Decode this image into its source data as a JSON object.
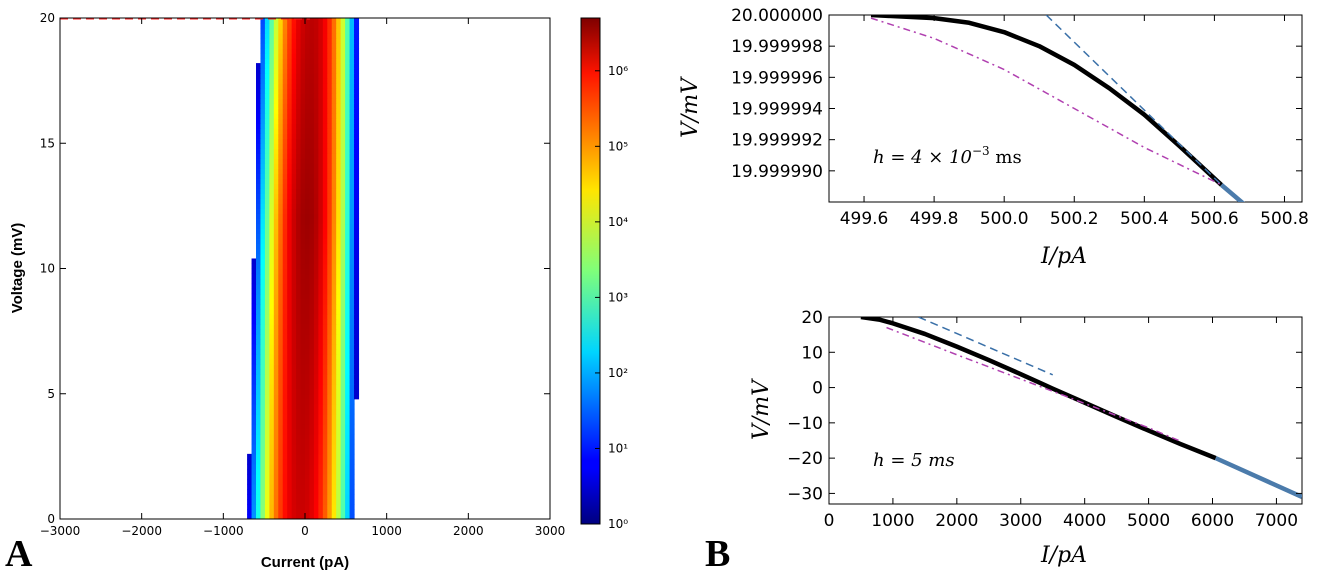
{
  "panel_labels": {
    "a": "A",
    "b": "B"
  },
  "chart_data": [
    {
      "id": "A",
      "type": "heatmap",
      "xlabel": "Current (pA)",
      "ylabel": "Voltage (mV)",
      "xlim": [
        -3000,
        3000
      ],
      "ylim": [
        0,
        20
      ],
      "xticks": [
        -3000,
        -2000,
        -1000,
        0,
        1000,
        2000,
        3000
      ],
      "xtick_labels": [
        "−3000",
        "−2000",
        "−1000",
        "0",
        "1000",
        "2000",
        "3000"
      ],
      "yticks": [
        0,
        5,
        10,
        15,
        20
      ],
      "ytick_labels": [
        "0",
        "5",
        "10",
        "15",
        "20"
      ],
      "colorbar": {
        "scale": "log",
        "colormap": "jet",
        "range": [
          1,
          5000000
        ],
        "ticks": [
          1,
          10,
          100,
          1000,
          10000,
          100000,
          1000000
        ],
        "tick_labels": [
          "10⁰",
          "10¹",
          "10²",
          "10³",
          "10⁴",
          "10⁵",
          "10⁶"
        ]
      },
      "density": {
        "description_values": "log10(count) over current at each voltage",
        "center_current_at_v0": -50,
        "center_current_at_v20": 80,
        "peak_log10_count": 6.5,
        "extent_current_at_v0": [
          -700,
          620
        ],
        "extent_current_at_v20": [
          -560,
          650
        ]
      },
      "lines": [
        {
          "current": [
            -3000,
            60
          ],
          "voltage": [
            20,
            20
          ],
          "color": "#ff2222",
          "style": "dashed"
        },
        {
          "current": [
            -3000,
            3000
          ],
          "voltage": [
            20.05,
            20.05
          ],
          "color": "#2222ee",
          "style": "solid"
        }
      ],
      "grid": false
    },
    {
      "id": "B_top",
      "type": "line",
      "xlabel": "I/pA",
      "ylabel": "V/mV",
      "xlim": [
        499.5,
        500.85
      ],
      "ylim": [
        19.999988,
        20.0
      ],
      "xticks": [
        499.6,
        499.8,
        500.0,
        500.2,
        500.4,
        500.6,
        500.8
      ],
      "xtick_labels": [
        "499.6",
        "499.8",
        "500.0",
        "500.2",
        "500.4",
        "500.6",
        "500.8"
      ],
      "yticks": [
        19.99999,
        19.999992,
        19.999994,
        19.999996,
        19.999998,
        20.0
      ],
      "ytick_labels": [
        "19.999990",
        "19.999992",
        "19.999994",
        "19.999996",
        "19.999998",
        "20.000000"
      ],
      "annotation": {
        "text": "h = 4 × 10",
        "superscript": "−3",
        "suffix": " ms"
      },
      "series": [
        {
          "color": "#000000",
          "style": "solid",
          "width": 4.5,
          "x": [
            499.62,
            499.8,
            499.9,
            500.0,
            500.1,
            500.2,
            500.3,
            500.4,
            500.5,
            500.62
          ],
          "y": [
            20.0,
            19.9999998,
            19.9999995,
            19.9999989,
            19.999998,
            19.9999968,
            19.9999953,
            19.9999936,
            19.9999916,
            19.9999891
          ]
        },
        {
          "color": "#4b7bab",
          "style": "solid",
          "width": 4.5,
          "x": [
            500.62,
            500.85
          ],
          "y": [
            19.9999891,
            19.9999847
          ]
        },
        {
          "color": "#3a70a8",
          "style": "dashed",
          "width": 1.5,
          "x": [
            500.12,
            500.62
          ],
          "y": [
            20.0,
            19.9999891
          ]
        },
        {
          "color": "#b040b0",
          "style": "dashdot",
          "width": 1.5,
          "x": [
            499.62,
            499.8,
            500.0,
            500.2,
            500.4,
            500.62
          ],
          "y": [
            19.9999998,
            19.9999985,
            19.9999965,
            19.999994,
            19.9999915,
            19.9999891
          ]
        }
      ],
      "grid": false
    },
    {
      "id": "B_bottom",
      "type": "line",
      "xlabel": "I/pA",
      "ylabel": "V/mV",
      "xlim": [
        0,
        7400
      ],
      "ylim": [
        -33,
        20
      ],
      "xticks": [
        0,
        1000,
        2000,
        3000,
        4000,
        5000,
        6000,
        7000
      ],
      "xtick_labels": [
        "0",
        "1000",
        "2000",
        "3000",
        "4000",
        "5000",
        "6000",
        "7000"
      ],
      "yticks": [
        -30,
        -20,
        -10,
        0,
        10,
        20
      ],
      "ytick_labels": [
        "−30",
        "−20",
        "−10",
        "0",
        "10",
        "20"
      ],
      "annotation": {
        "text": "h = 5  ms",
        "superscript": "",
        "suffix": ""
      },
      "series": [
        {
          "color": "#000000",
          "style": "solid",
          "width": 4.5,
          "x": [
            500,
            800,
            1000,
            1500,
            2000,
            2500,
            3000,
            3500,
            4000,
            4500,
            5000,
            5500,
            6050
          ],
          "y": [
            20,
            19.2,
            18.2,
            15.2,
            11.6,
            7.8,
            3.8,
            -0.3,
            -4.3,
            -8.3,
            -12.2,
            -16.0,
            -20.0
          ]
        },
        {
          "color": "#4b7bab",
          "style": "solid",
          "width": 4.5,
          "x": [
            6050,
            7400
          ],
          "y": [
            -20.0,
            -31.0
          ]
        },
        {
          "color": "#3a70a8",
          "style": "dashed",
          "width": 1.5,
          "x": [
            1400,
            3500
          ],
          "y": [
            20,
            3.6
          ]
        },
        {
          "color": "#b040b0",
          "style": "dashdot",
          "width": 1.5,
          "x": [
            900,
            2000,
            3000,
            4000,
            5000,
            5500
          ],
          "y": [
            17.0,
            9.3,
            2.4,
            -4.5,
            -11.4,
            -15.2
          ]
        }
      ],
      "grid": false
    }
  ]
}
